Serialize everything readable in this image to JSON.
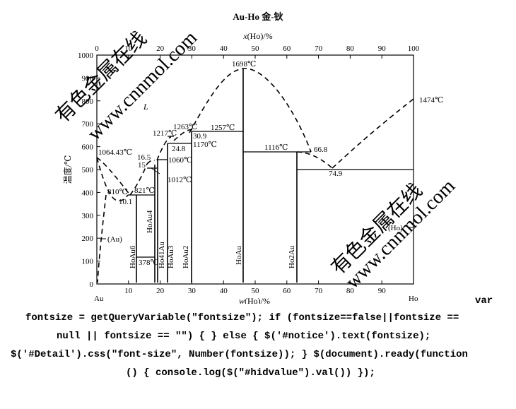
{
  "title": "Au-Ho  金-钬",
  "top_axis": {
    "label_main": "x",
    "label_rest": "(Ho)/%",
    "ticks": [
      "0",
      "10",
      "20",
      "30",
      "40",
      "50",
      "60",
      "70",
      "80",
      "90",
      "100"
    ]
  },
  "bottom_axis": {
    "label_main": "w",
    "label_rest": "(Ho)/%",
    "ticks": [
      "0",
      "10",
      "20",
      "30",
      "40",
      "50",
      "60",
      "70",
      "80",
      "90",
      "100"
    ],
    "left_element": "Au",
    "right_element": "Ho"
  },
  "y_axis": {
    "label": "温度/℃",
    "ticks": [
      "0",
      "100",
      "200",
      "300",
      "400",
      "500",
      "600",
      "700",
      "800",
      "900",
      "1000"
    ]
  },
  "annotations": {
    "liquid": "L",
    "t1698": "1698℃",
    "t1474": "1474℃",
    "t1064": "1064.43℃",
    "t1263": "1263℃",
    "t1257": "1257℃",
    "c309": "30.9",
    "t1170": "1170℃",
    "t1217": "1217℃",
    "c248": "24.8",
    "c165": "16.5",
    "c15": "15",
    "t1060": "1060℃",
    "t1012": "1012℃",
    "t810": "810℃",
    "t821": "821℃",
    "c101": "10.1",
    "t1116": "1116℃",
    "c668": "66.8",
    "c749": "74.9",
    "t378": "378℃",
    "au_phase": "(Au)",
    "ho_phase": "(Ho)"
  },
  "phases": {
    "hoau6": "HoAu6",
    "hoau4": "HoAu4",
    "ho41au": "Ho41Au",
    "hoau3": "HoAu3",
    "hoau2": "HoAu2",
    "hoau": "HoAu",
    "ho2au": "Ho2Au"
  },
  "watermarks": [
    "有色金属在线",
    "www.cnnmol.com",
    "有色金属在线",
    "www.cnnmol.com"
  ],
  "code_lines": [
    "var",
    "fontsize = getQueryVariable(\"fontsize\"); if (fontsize==false||fontsize ==",
    "null || fontsize == \"\") { } else { $('#notice').text(fontsize);",
    "$('#Detail').css(\"font-size\", Number(fontsize)); } $(document).ready(function",
    "() { console.log($(\"#hidvalue\").val()) });"
  ]
}
